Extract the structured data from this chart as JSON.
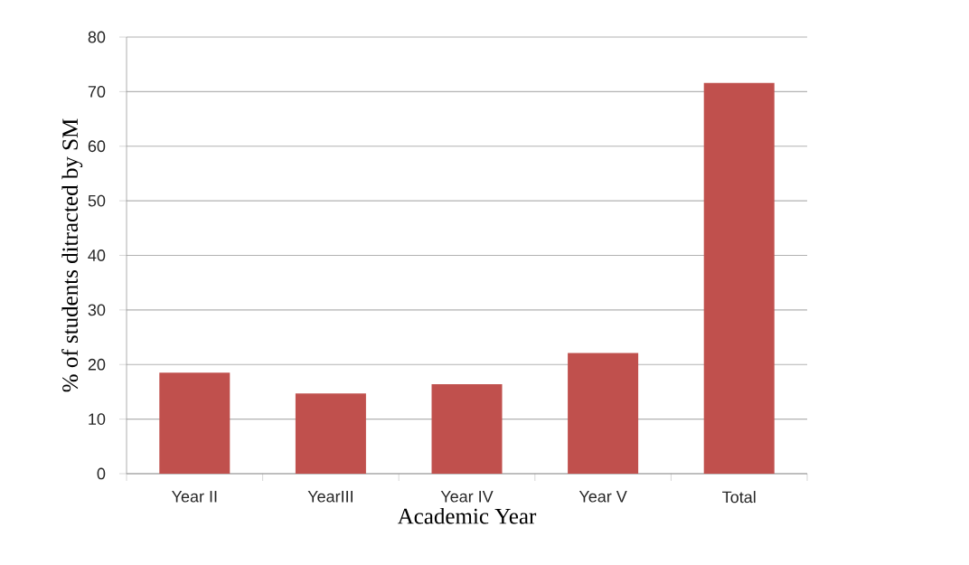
{
  "chart_data": {
    "type": "bar",
    "xlabel": "Academic Year",
    "ylabel": "% of  students ditracted  by SM",
    "categories": [
      "Year II",
      "YearIII",
      "Year IV",
      "Year V",
      "Total"
    ],
    "values": [
      18.5,
      14.7,
      16.4,
      22.1,
      71.6
    ],
    "color": "#c0504d",
    "ylim": [
      0,
      80
    ],
    "yticks": [
      0,
      10,
      20,
      30,
      40,
      50,
      60,
      70,
      80
    ],
    "grid": "y"
  }
}
